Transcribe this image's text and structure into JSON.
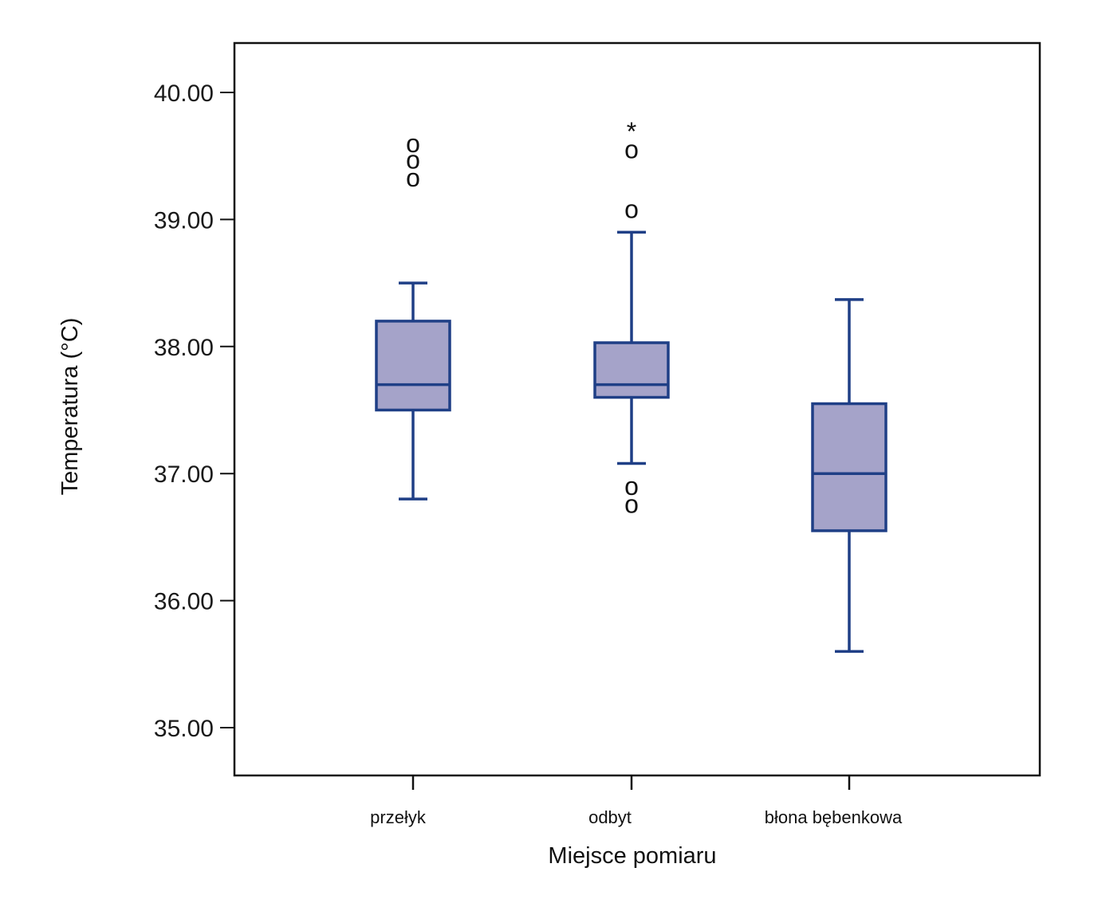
{
  "chart_data": {
    "type": "boxplot",
    "xlabel": "Miejsce pomiaru",
    "ylabel": "Temperatura (°C)",
    "ylim": [
      34.6,
      40.4
    ],
    "yticks": [
      {
        "value": 35,
        "label": "35.00"
      },
      {
        "value": 36,
        "label": "36.00"
      },
      {
        "value": 37,
        "label": "37.00"
      },
      {
        "value": 38,
        "label": "38.00"
      },
      {
        "value": 39,
        "label": "39.00"
      },
      {
        "value": 40,
        "label": "40.00"
      }
    ],
    "grid": false,
    "colors": {
      "box_fill": "#a5a3c9",
      "box_stroke": "#1f3f86"
    },
    "outlier_symbol": "o",
    "extreme_symbol": "*",
    "categories": [
      "przełyk",
      "odbyt",
      "błona  bębenkowa"
    ],
    "boxes": [
      {
        "category": "przełyk",
        "whisker_low": 36.8,
        "q1": 37.5,
        "median": 37.7,
        "q3": 38.2,
        "whisker_high": 38.5,
        "outliers": [
          39.6,
          39.47,
          39.33
        ],
        "extremes": []
      },
      {
        "category": "odbyt",
        "whisker_low": 37.08,
        "q1": 37.6,
        "median": 37.7,
        "q3": 38.03,
        "whisker_high": 38.9,
        "outliers": [
          39.55,
          39.08,
          36.9,
          36.76
        ],
        "extremes": [
          39.75
        ]
      },
      {
        "category": "błona  bębenkowa",
        "whisker_low": 35.6,
        "q1": 36.55,
        "median": 37.0,
        "q3": 37.55,
        "whisker_high": 38.37,
        "outliers": [],
        "extremes": []
      }
    ]
  }
}
